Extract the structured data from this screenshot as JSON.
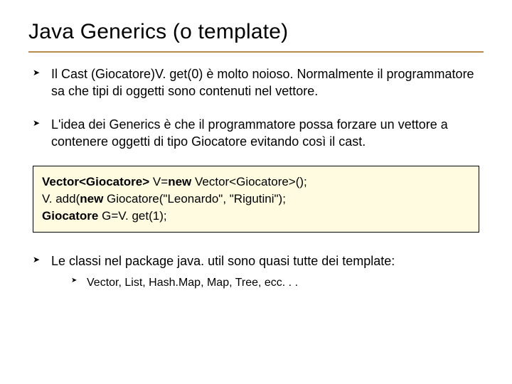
{
  "title": "Java Generics (o template)",
  "rule_color": "#b68a4a",
  "bullets": {
    "b1": "Il Cast (Giocatore)V. get(0) è molto noioso. Normalmente il programmatore sa che tipi di oggetti sono contenuti nel vettore.",
    "b2": "L'idea dei Generics è che il programmatore possa forzare un vettore a contenere oggetti di tipo Giocatore evitando così il cast.",
    "b3": "Le classi nel package java. util sono quasi tutte dei template:",
    "sub1": "Vector, List, Hash.Map, Map, Tree, ecc. . ."
  },
  "code": {
    "bg_color": "#fffbe0",
    "border_color": "#000000",
    "line1_pre": "Vector<Giocatore> ",
    "line1_mid1": "V=",
    "line1_bold2": "new ",
    "line1_rest": "Vector<Giocatore>();",
    "line2_pre": "V. add(",
    "line2_bold": "new ",
    "line2_rest": "Giocatore(\"Leonardo\", \"Rigutini\");",
    "line3_pre": "Giocatore ",
    "line3_rest": "G=V. get(1);"
  }
}
